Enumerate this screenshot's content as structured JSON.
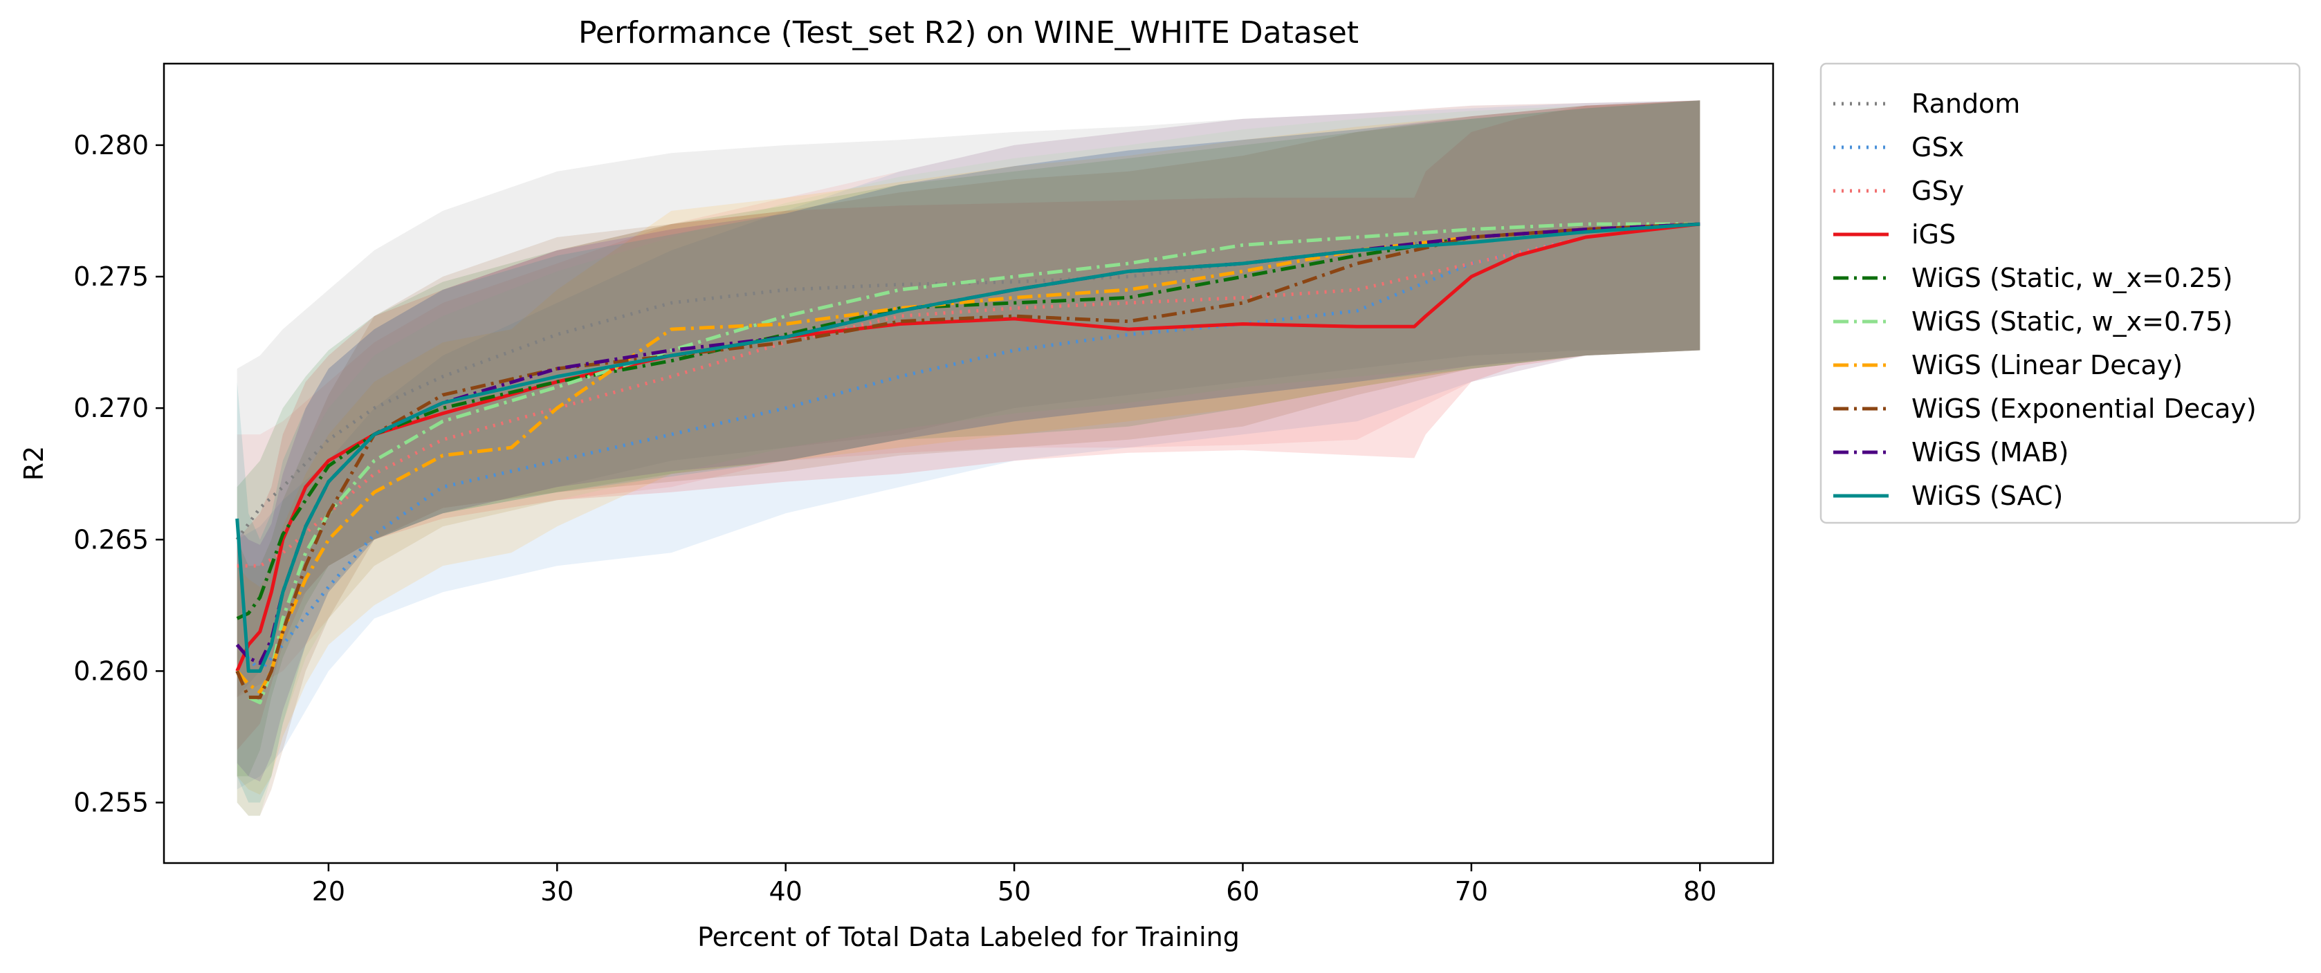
{
  "chart_data": {
    "type": "line",
    "title": "Performance (Test_set R2) on WINE_WHITE Dataset",
    "xlabel": "Percent of Total Data Labeled for Training",
    "ylabel": "R2",
    "xlim": [
      12.8,
      83.2
    ],
    "ylim": [
      0.2527,
      0.2831
    ],
    "xticks": [
      20,
      30,
      40,
      50,
      60,
      70,
      80
    ],
    "yticks": [
      0.255,
      0.26,
      0.265,
      0.27,
      0.275,
      0.28
    ],
    "xtick_labels": [
      "20",
      "30",
      "40",
      "50",
      "60",
      "70",
      "80"
    ],
    "ytick_labels": [
      "0.255",
      "0.260",
      "0.265",
      "0.270",
      "0.275",
      "0.280"
    ],
    "grid": false,
    "legend_position": "outside-right",
    "series": [
      {
        "name": "Random",
        "color": "#808080",
        "style": "dotted",
        "x": [
          16,
          17,
          18,
          20,
          22,
          25,
          30,
          35,
          40,
          45,
          50,
          55,
          60,
          65,
          70,
          75,
          80
        ],
        "y": [
          0.265,
          0.2662,
          0.267,
          0.2688,
          0.27,
          0.2712,
          0.2728,
          0.274,
          0.2745,
          0.2747,
          0.2748,
          0.275,
          0.2755,
          0.276,
          0.2765,
          0.2767,
          0.277
        ],
        "band_low": [
          0.259,
          0.26,
          0.262,
          0.264,
          0.265,
          0.266,
          0.267,
          0.268,
          0.2685,
          0.269,
          0.27,
          0.2705,
          0.271,
          0.2715,
          0.272,
          0.2722,
          0.2722
        ],
        "band_high": [
          0.2715,
          0.272,
          0.273,
          0.2745,
          0.276,
          0.2775,
          0.279,
          0.2797,
          0.28,
          0.2802,
          0.2805,
          0.2807,
          0.281,
          0.2812,
          0.2815,
          0.2816,
          0.2817
        ]
      },
      {
        "name": "GSx",
        "color": "#4a90d9",
        "style": "dotted",
        "x": [
          16,
          17,
          18,
          20,
          22,
          25,
          30,
          35,
          40,
          45,
          50,
          55,
          60,
          65,
          70,
          75,
          80
        ],
        "y": [
          0.261,
          0.26,
          0.261,
          0.2632,
          0.2652,
          0.267,
          0.268,
          0.269,
          0.27,
          0.2712,
          0.2722,
          0.2728,
          0.2732,
          0.2737,
          0.2755,
          0.2765,
          0.277
        ],
        "band_low": [
          0.2555,
          0.256,
          0.257,
          0.26,
          0.262,
          0.263,
          0.264,
          0.2645,
          0.266,
          0.267,
          0.268,
          0.2685,
          0.269,
          0.2695,
          0.271,
          0.272,
          0.2722
        ],
        "band_high": [
          0.265,
          0.2655,
          0.2665,
          0.268,
          0.27,
          0.272,
          0.274,
          0.276,
          0.2775,
          0.279,
          0.28,
          0.2805,
          0.281,
          0.2812,
          0.2814,
          0.2816,
          0.2817
        ]
      },
      {
        "name": "GSy",
        "color": "#f07070",
        "style": "dotted",
        "x": [
          16,
          17,
          18,
          20,
          22,
          25,
          30,
          35,
          40,
          45,
          50,
          55,
          60,
          65,
          70,
          75,
          80
        ],
        "y": [
          0.264,
          0.264,
          0.2645,
          0.266,
          0.2675,
          0.2688,
          0.27,
          0.2712,
          0.2725,
          0.2735,
          0.2738,
          0.274,
          0.2742,
          0.2745,
          0.2755,
          0.2765,
          0.277
        ],
        "band_low": [
          0.259,
          0.2595,
          0.26,
          0.262,
          0.264,
          0.2655,
          0.2665,
          0.267,
          0.268,
          0.2683,
          0.2685,
          0.2685,
          0.2686,
          0.2688,
          0.271,
          0.272,
          0.2722
        ],
        "band_high": [
          0.269,
          0.269,
          0.2695,
          0.271,
          0.2725,
          0.274,
          0.2755,
          0.277,
          0.278,
          0.279,
          0.28,
          0.2805,
          0.281,
          0.2812,
          0.2815,
          0.2816,
          0.2817
        ]
      },
      {
        "name": "iGS",
        "color": "#e8141b",
        "style": "solid",
        "x": [
          16,
          16.5,
          17,
          17.5,
          18,
          19,
          20,
          22,
          25,
          30,
          35,
          40,
          45,
          50,
          55,
          60,
          65,
          67.5,
          68,
          70,
          72,
          75,
          80
        ],
        "y": [
          0.26,
          0.261,
          0.2615,
          0.263,
          0.265,
          0.267,
          0.268,
          0.269,
          0.2698,
          0.271,
          0.272,
          0.2727,
          0.2732,
          0.2734,
          0.273,
          0.2732,
          0.2731,
          0.2731,
          0.2735,
          0.275,
          0.2758,
          0.2765,
          0.277
        ],
        "band_low": [
          0.257,
          0.2575,
          0.258,
          0.2595,
          0.261,
          0.263,
          0.264,
          0.265,
          0.2658,
          0.2665,
          0.2668,
          0.2672,
          0.2675,
          0.268,
          0.2683,
          0.2684,
          0.2682,
          0.2681,
          0.269,
          0.271,
          0.2716,
          0.272,
          0.2722
        ],
        "band_high": [
          0.265,
          0.2655,
          0.266,
          0.267,
          0.269,
          0.271,
          0.272,
          0.2735,
          0.2745,
          0.276,
          0.277,
          0.2775,
          0.2777,
          0.2778,
          0.2779,
          0.278,
          0.278,
          0.278,
          0.279,
          0.2805,
          0.281,
          0.2815,
          0.2817
        ]
      },
      {
        "name": "WiGS (Static, w_x=0.25)",
        "color": "#0b6e0b",
        "style": "dashdot",
        "x": [
          16,
          16.5,
          17,
          17.5,
          18,
          19,
          20,
          22,
          25,
          30,
          35,
          40,
          45,
          50,
          55,
          60,
          65,
          70,
          75,
          80
        ],
        "y": [
          0.262,
          0.2622,
          0.2628,
          0.264,
          0.2652,
          0.2665,
          0.2678,
          0.269,
          0.27,
          0.271,
          0.2718,
          0.2728,
          0.2738,
          0.274,
          0.2742,
          0.275,
          0.2758,
          0.2765,
          0.2768,
          0.277
        ],
        "band_low": [
          0.256,
          0.256,
          0.257,
          0.259,
          0.2605,
          0.2625,
          0.264,
          0.265,
          0.266,
          0.2668,
          0.2675,
          0.268,
          0.2688,
          0.269,
          0.2693,
          0.27,
          0.2708,
          0.2715,
          0.272,
          0.2722
        ],
        "band_high": [
          0.267,
          0.2675,
          0.268,
          0.269,
          0.27,
          0.2712,
          0.2722,
          0.2735,
          0.2748,
          0.276,
          0.277,
          0.2777,
          0.2785,
          0.279,
          0.2795,
          0.28,
          0.2805,
          0.281,
          0.2814,
          0.2817
        ]
      },
      {
        "name": "WiGS (Static, w_x=0.75)",
        "color": "#8fe08f",
        "style": "dashdot",
        "x": [
          16,
          16.5,
          17,
          17.5,
          18,
          19,
          20,
          22,
          25,
          30,
          35,
          40,
          45,
          50,
          55,
          60,
          65,
          70,
          75,
          80
        ],
        "y": [
          0.26,
          0.259,
          0.2588,
          0.26,
          0.262,
          0.2645,
          0.266,
          0.268,
          0.2695,
          0.2708,
          0.2722,
          0.2735,
          0.2745,
          0.275,
          0.2755,
          0.2762,
          0.2765,
          0.2768,
          0.277,
          0.277
        ],
        "band_low": [
          0.255,
          0.2545,
          0.2545,
          0.256,
          0.258,
          0.2605,
          0.262,
          0.264,
          0.2655,
          0.2665,
          0.2675,
          0.2685,
          0.2692,
          0.2698,
          0.2702,
          0.2708,
          0.2712,
          0.2716,
          0.272,
          0.2722
        ],
        "band_high": [
          0.265,
          0.264,
          0.264,
          0.265,
          0.2665,
          0.2685,
          0.27,
          0.272,
          0.2735,
          0.2752,
          0.2765,
          0.2778,
          0.2788,
          0.2795,
          0.28,
          0.2806,
          0.281,
          0.2813,
          0.2815,
          0.2817
        ]
      },
      {
        "name": "WiGS (Linear Decay)",
        "color": "#ffa500",
        "style": "dashdot",
        "x": [
          16,
          16.5,
          17,
          17.5,
          18,
          19,
          20,
          22,
          25,
          28,
          30,
          35,
          40,
          45,
          50,
          55,
          60,
          65,
          70,
          75,
          80
        ],
        "y": [
          0.26,
          0.2595,
          0.2592,
          0.26,
          0.2615,
          0.2635,
          0.265,
          0.2668,
          0.2682,
          0.2685,
          0.27,
          0.273,
          0.2732,
          0.2738,
          0.2742,
          0.2745,
          0.2752,
          0.276,
          0.2765,
          0.2768,
          0.277
        ],
        "band_low": [
          0.256,
          0.2555,
          0.2553,
          0.256,
          0.2575,
          0.2595,
          0.261,
          0.2625,
          0.264,
          0.2645,
          0.2655,
          0.2675,
          0.268,
          0.2685,
          0.269,
          0.2695,
          0.27,
          0.2708,
          0.2715,
          0.272,
          0.2722
        ],
        "band_high": [
          0.264,
          0.2635,
          0.2632,
          0.264,
          0.2655,
          0.2675,
          0.269,
          0.271,
          0.2725,
          0.273,
          0.2745,
          0.2775,
          0.278,
          0.2786,
          0.2792,
          0.2796,
          0.2802,
          0.2807,
          0.2811,
          0.2815,
          0.2817
        ]
      },
      {
        "name": "WiGS (Exponential Decay)",
        "color": "#8b4513",
        "style": "dashdot",
        "x": [
          16,
          16.5,
          17,
          17.5,
          18,
          19,
          20,
          22,
          25,
          30,
          35,
          40,
          45,
          50,
          55,
          60,
          65,
          70,
          75,
          80
        ],
        "y": [
          0.26,
          0.259,
          0.259,
          0.26,
          0.2615,
          0.264,
          0.266,
          0.269,
          0.2705,
          0.2715,
          0.272,
          0.2725,
          0.2733,
          0.2735,
          0.2733,
          0.274,
          0.2755,
          0.2765,
          0.2768,
          0.277
        ],
        "band_low": [
          0.255,
          0.2545,
          0.2545,
          0.2555,
          0.257,
          0.26,
          0.262,
          0.265,
          0.2662,
          0.2668,
          0.2672,
          0.2676,
          0.2682,
          0.2685,
          0.2688,
          0.2693,
          0.2705,
          0.2715,
          0.272,
          0.2722
        ],
        "band_high": [
          0.265,
          0.264,
          0.264,
          0.265,
          0.2665,
          0.2685,
          0.2705,
          0.2735,
          0.275,
          0.2765,
          0.277,
          0.2775,
          0.2782,
          0.2787,
          0.279,
          0.2796,
          0.2805,
          0.2811,
          0.2815,
          0.2817
        ]
      },
      {
        "name": "WiGS (MAB)",
        "color": "#4b0082",
        "style": "dashdot",
        "x": [
          16,
          16.5,
          17,
          17.5,
          18,
          19,
          20,
          22,
          25,
          30,
          35,
          40,
          45,
          50,
          55,
          60,
          65,
          70,
          75,
          80
        ],
        "y": [
          0.261,
          0.2605,
          0.2603,
          0.2612,
          0.263,
          0.2655,
          0.2672,
          0.269,
          0.2702,
          0.2715,
          0.2722,
          0.2727,
          0.2737,
          0.2745,
          0.2752,
          0.2755,
          0.276,
          0.2765,
          0.2768,
          0.277
        ],
        "band_low": [
          0.2565,
          0.256,
          0.2558,
          0.2568,
          0.2585,
          0.261,
          0.263,
          0.265,
          0.266,
          0.267,
          0.2676,
          0.268,
          0.2688,
          0.2695,
          0.27,
          0.2705,
          0.271,
          0.2716,
          0.272,
          0.2722
        ],
        "band_high": [
          0.2655,
          0.265,
          0.2648,
          0.2656,
          0.2675,
          0.27,
          0.2715,
          0.273,
          0.2745,
          0.276,
          0.2768,
          0.2774,
          0.2785,
          0.2792,
          0.2798,
          0.2802,
          0.2806,
          0.2811,
          0.2815,
          0.2817
        ]
      },
      {
        "name": "WiGS (SAC)",
        "color": "#008b8b",
        "style": "solid",
        "x": [
          16,
          16.5,
          17,
          17.5,
          18,
          19,
          20,
          22,
          25,
          30,
          35,
          40,
          45,
          50,
          55,
          60,
          65,
          70,
          75,
          80
        ],
        "y": [
          0.2658,
          0.26,
          0.26,
          0.261,
          0.263,
          0.2655,
          0.2672,
          0.269,
          0.2702,
          0.2712,
          0.272,
          0.2727,
          0.2737,
          0.2745,
          0.2752,
          0.2755,
          0.276,
          0.2763,
          0.2767,
          0.277
        ],
        "band_low": [
          0.256,
          0.255,
          0.255,
          0.256,
          0.258,
          0.261,
          0.263,
          0.265,
          0.266,
          0.2668,
          0.2674,
          0.268,
          0.2688,
          0.2695,
          0.27,
          0.2705,
          0.271,
          0.2715,
          0.272,
          0.2722
        ],
        "band_high": [
          0.271,
          0.266,
          0.265,
          0.266,
          0.268,
          0.27,
          0.2715,
          0.273,
          0.2745,
          0.2758,
          0.2766,
          0.2774,
          0.2785,
          0.2792,
          0.2798,
          0.2802,
          0.2806,
          0.281,
          0.2814,
          0.2817
        ]
      }
    ]
  }
}
